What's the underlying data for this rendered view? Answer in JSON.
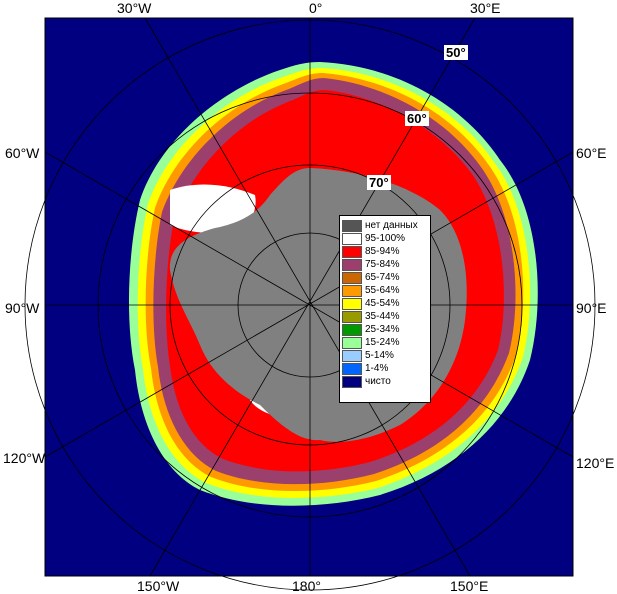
{
  "longitude_labels": {
    "top": [
      "30°W",
      "0°",
      "30°E"
    ],
    "left": [
      "60°W",
      "90°W",
      "120°W"
    ],
    "right": [
      "60°E",
      "90°E",
      "120°E"
    ],
    "bottom": [
      "150°W",
      "180°",
      "150°E"
    ]
  },
  "latitude_labels": [
    "50°",
    "60°",
    "70°"
  ],
  "legend": [
    {
      "label": "нет данных",
      "color": "#555555"
    },
    {
      "label": "95-100%",
      "color": "#ffffff"
    },
    {
      "label": "85-94%",
      "color": "#ff0000"
    },
    {
      "label": "75-84%",
      "color": "#9b3f6c"
    },
    {
      "label": "65-74%",
      "color": "#cc6600"
    },
    {
      "label": "55-64%",
      "color": "#ff9900"
    },
    {
      "label": "45-54%",
      "color": "#ffff00"
    },
    {
      "label": "35-44%",
      "color": "#999900"
    },
    {
      "label": "25-34%",
      "color": "#009900"
    },
    {
      "label": "15-24%",
      "color": "#99ff99"
    },
    {
      "label": "5-14%",
      "color": "#99ccff"
    },
    {
      "label": "1-4%",
      "color": "#0066ff"
    },
    {
      "label": "чисто",
      "color": "#000080"
    }
  ],
  "colors": {
    "ocean": "#000080",
    "land": "#808080",
    "grid": "#000000"
  }
}
